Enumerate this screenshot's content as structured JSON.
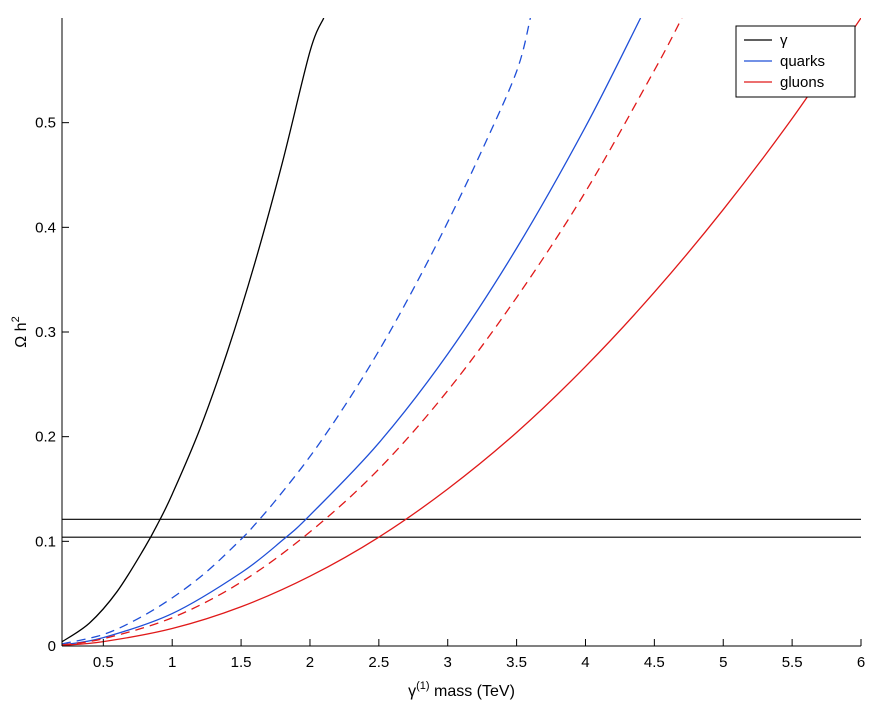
{
  "chart_data": {
    "type": "line",
    "title": "",
    "xlabel": {
      "base": "γ",
      "sup": "(1)",
      "rest": " mass (TeV)"
    },
    "ylabel": {
      "base": "Ω h",
      "sup": "2"
    },
    "xlim": [
      0.2,
      6.0
    ],
    "ylim": [
      0.0,
      0.6
    ],
    "x_ticks": [
      {
        "value": 0.5,
        "label": "0.5"
      },
      {
        "value": 1.0,
        "label": "1"
      },
      {
        "value": 1.5,
        "label": "1.5"
      },
      {
        "value": 2.0,
        "label": "2"
      },
      {
        "value": 2.5,
        "label": "2.5"
      },
      {
        "value": 3.0,
        "label": "3"
      },
      {
        "value": 3.5,
        "label": "3.5"
      },
      {
        "value": 4.0,
        "label": "4"
      },
      {
        "value": 4.5,
        "label": "4.5"
      },
      {
        "value": 5.0,
        "label": "5"
      },
      {
        "value": 5.5,
        "label": "5.5"
      },
      {
        "value": 6.0,
        "label": "6"
      }
    ],
    "y_ticks": [
      {
        "value": 0.0,
        "label": "0"
      },
      {
        "value": 0.1,
        "label": "0.1"
      },
      {
        "value": 0.2,
        "label": "0.2"
      },
      {
        "value": 0.3,
        "label": "0.3"
      },
      {
        "value": 0.4,
        "label": "0.4"
      },
      {
        "value": 0.5,
        "label": "0.5"
      }
    ],
    "grid": false,
    "legend_position": "top-right",
    "legend": [
      {
        "label": "γ",
        "color": "#000000"
      },
      {
        "label": "quarks",
        "color": "#1f4fd8"
      },
      {
        "label": "gluons",
        "color": "#e01919"
      }
    ],
    "series": [
      {
        "legend_index": 0,
        "color": "#000000",
        "dash": "solid",
        "x": [
          0.2,
          0.4,
          0.6,
          0.8,
          0.9,
          1.0,
          1.2,
          1.4,
          1.6,
          1.8,
          2.0,
          2.1
        ],
        "y": [
          0.004,
          0.022,
          0.052,
          0.094,
          0.118,
          0.145,
          0.207,
          0.281,
          0.366,
          0.462,
          0.568,
          0.6
        ]
      },
      {
        "legend_index": 1,
        "color": "#1f4fd8",
        "dash": "dashed",
        "x": [
          0.2,
          0.5,
          0.75,
          1.0,
          1.25,
          1.5,
          1.6,
          1.75,
          2.0,
          2.25,
          2.5,
          2.75,
          3.0,
          3.25,
          3.5,
          3.6
        ],
        "y": [
          0.002,
          0.011,
          0.026,
          0.046,
          0.071,
          0.102,
          0.116,
          0.139,
          0.181,
          0.229,
          0.282,
          0.341,
          0.405,
          0.474,
          0.549,
          0.6
        ]
      },
      {
        "legend_index": 1,
        "color": "#1f4fd8",
        "dash": "solid",
        "x": [
          0.2,
          0.5,
          1.0,
          1.5,
          1.8,
          2.0,
          2.5,
          3.0,
          3.5,
          4.0,
          4.4
        ],
        "y": [
          0.001,
          0.008,
          0.031,
          0.07,
          0.101,
          0.125,
          0.194,
          0.279,
          0.38,
          0.496,
          0.6
        ]
      },
      {
        "legend_index": 2,
        "color": "#e01919",
        "dash": "dashed",
        "x": [
          0.2,
          0.5,
          1.0,
          1.5,
          2.0,
          2.5,
          3.0,
          3.5,
          4.0,
          4.5,
          4.7
        ],
        "y": [
          0.001,
          0.007,
          0.027,
          0.061,
          0.109,
          0.169,
          0.244,
          0.333,
          0.434,
          0.55,
          0.6
        ]
      },
      {
        "legend_index": 2,
        "color": "#e01919",
        "dash": "solid",
        "x": [
          0.2,
          0.5,
          1.0,
          1.5,
          2.0,
          2.5,
          3.0,
          3.5,
          4.0,
          4.5,
          5.0,
          5.5,
          6.0
        ],
        "y": [
          0.0007,
          0.0042,
          0.0167,
          0.0375,
          0.0667,
          0.104,
          0.15,
          0.204,
          0.267,
          0.338,
          0.417,
          0.504,
          0.6
        ]
      }
    ],
    "hlines": [
      {
        "y": 0.121,
        "color": "#000000"
      },
      {
        "y": 0.104,
        "color": "#000000"
      }
    ]
  }
}
